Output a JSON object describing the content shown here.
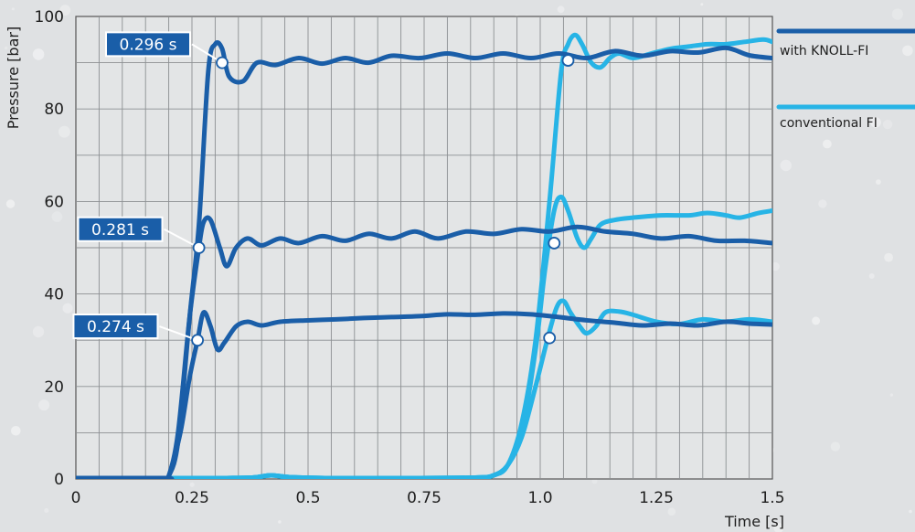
{
  "chart_data": {
    "type": "line",
    "xlabel": "Time [s]",
    "ylabel": "Pressure [bar]",
    "xlim": [
      0,
      1.5
    ],
    "ylim": [
      0,
      100
    ],
    "x_ticks": [
      {
        "value": 0,
        "label": "0"
      },
      {
        "value": 0.25,
        "label": "0.25"
      },
      {
        "value": 0.5,
        "label": "0.5"
      },
      {
        "value": 0.75,
        "label": "0.75"
      },
      {
        "value": 1.0,
        "label": "1.0"
      },
      {
        "value": 1.25,
        "label": "1.25"
      },
      {
        "value": 1.5,
        "label": "1.5"
      }
    ],
    "y_ticks": [
      {
        "value": 0,
        "label": "0"
      },
      {
        "value": 20,
        "label": "20"
      },
      {
        "value": 40,
        "label": "40"
      },
      {
        "value": 60,
        "label": "60"
      },
      {
        "value": 80,
        "label": "80"
      },
      {
        "value": 100,
        "label": "100"
      }
    ],
    "grid": true,
    "legend_position": "right",
    "legend": [
      {
        "label": "with KNOLL-FI",
        "color": "#1a5ea8"
      },
      {
        "label": "conventional FI",
        "color": "#27b4e6"
      }
    ],
    "series": [
      {
        "group": "with KNOLL-FI",
        "color": "#1a5ea8",
        "points": [
          [
            0,
            0.2
          ],
          [
            0.19,
            0.2
          ],
          [
            0.2,
            0.6
          ],
          [
            0.22,
            8
          ],
          [
            0.245,
            35
          ],
          [
            0.265,
            55
          ],
          [
            0.285,
            88
          ],
          [
            0.3,
            94
          ],
          [
            0.315,
            93
          ],
          [
            0.33,
            87
          ],
          [
            0.36,
            86
          ],
          [
            0.39,
            90
          ],
          [
            0.43,
            89.5
          ],
          [
            0.48,
            91
          ],
          [
            0.53,
            89.8
          ],
          [
            0.58,
            91
          ],
          [
            0.63,
            90
          ],
          [
            0.68,
            91.5
          ],
          [
            0.74,
            91
          ],
          [
            0.8,
            92
          ],
          [
            0.86,
            91
          ],
          [
            0.92,
            92
          ],
          [
            0.98,
            91
          ],
          [
            1.04,
            92
          ],
          [
            1.1,
            91
          ],
          [
            1.16,
            92.5
          ],
          [
            1.22,
            91.5
          ],
          [
            1.28,
            92.5
          ],
          [
            1.34,
            92.2
          ],
          [
            1.4,
            93.2
          ],
          [
            1.45,
            91.6
          ],
          [
            1.5,
            91
          ]
        ]
      },
      {
        "group": "with KNOLL-FI",
        "color": "#1a5ea8",
        "points": [
          [
            0,
            0.2
          ],
          [
            0.19,
            0.2
          ],
          [
            0.2,
            0.6
          ],
          [
            0.22,
            10
          ],
          [
            0.245,
            35
          ],
          [
            0.265,
            50
          ],
          [
            0.275,
            55.5
          ],
          [
            0.29,
            56
          ],
          [
            0.31,
            50
          ],
          [
            0.325,
            46
          ],
          [
            0.345,
            50
          ],
          [
            0.37,
            52
          ],
          [
            0.4,
            50.5
          ],
          [
            0.44,
            52
          ],
          [
            0.48,
            51
          ],
          [
            0.53,
            52.5
          ],
          [
            0.58,
            51.5
          ],
          [
            0.63,
            53
          ],
          [
            0.68,
            52
          ],
          [
            0.73,
            53.5
          ],
          [
            0.78,
            52
          ],
          [
            0.84,
            53.5
          ],
          [
            0.9,
            53
          ],
          [
            0.96,
            54
          ],
          [
            1.02,
            53.5
          ],
          [
            1.08,
            54.5
          ],
          [
            1.14,
            53.5
          ],
          [
            1.2,
            53
          ],
          [
            1.26,
            52
          ],
          [
            1.32,
            52.5
          ],
          [
            1.38,
            51.5
          ],
          [
            1.44,
            51.5
          ],
          [
            1.5,
            51
          ]
        ]
      },
      {
        "group": "with KNOLL-FI",
        "color": "#1a5ea8",
        "points": [
          [
            0,
            0.2
          ],
          [
            0.19,
            0.2
          ],
          [
            0.2,
            0.6
          ],
          [
            0.225,
            10
          ],
          [
            0.245,
            22
          ],
          [
            0.262,
            30
          ],
          [
            0.275,
            36
          ],
          [
            0.29,
            33
          ],
          [
            0.305,
            28
          ],
          [
            0.32,
            29.5
          ],
          [
            0.345,
            33
          ],
          [
            0.37,
            34
          ],
          [
            0.4,
            33.2
          ],
          [
            0.44,
            34
          ],
          [
            0.5,
            34.3
          ],
          [
            0.56,
            34.5
          ],
          [
            0.62,
            34.8
          ],
          [
            0.68,
            35
          ],
          [
            0.74,
            35.2
          ],
          [
            0.8,
            35.6
          ],
          [
            0.86,
            35.5
          ],
          [
            0.92,
            35.8
          ],
          [
            0.98,
            35.6
          ],
          [
            1.04,
            35
          ],
          [
            1.1,
            34.3
          ],
          [
            1.16,
            33.8
          ],
          [
            1.22,
            33.2
          ],
          [
            1.28,
            33.6
          ],
          [
            1.34,
            33.2
          ],
          [
            1.4,
            34
          ],
          [
            1.45,
            33.6
          ],
          [
            1.5,
            33.4
          ]
        ]
      },
      {
        "group": "conventional FI",
        "color": "#27b4e6",
        "points": [
          [
            0,
            0.2
          ],
          [
            0.3,
            0.2
          ],
          [
            0.38,
            0.3
          ],
          [
            0.42,
            0.8
          ],
          [
            0.46,
            0.4
          ],
          [
            0.55,
            0.2
          ],
          [
            0.7,
            0.2
          ],
          [
            0.86,
            0.3
          ],
          [
            0.9,
            0.8
          ],
          [
            0.93,
            3
          ],
          [
            0.96,
            12
          ],
          [
            0.99,
            30
          ],
          [
            1.02,
            60
          ],
          [
            1.045,
            88
          ],
          [
            1.06,
            94
          ],
          [
            1.075,
            96
          ],
          [
            1.09,
            94
          ],
          [
            1.11,
            90
          ],
          [
            1.13,
            89
          ],
          [
            1.15,
            91
          ],
          [
            1.17,
            92
          ],
          [
            1.2,
            91
          ],
          [
            1.24,
            92
          ],
          [
            1.28,
            93
          ],
          [
            1.32,
            93.5
          ],
          [
            1.36,
            94
          ],
          [
            1.4,
            94
          ],
          [
            1.44,
            94.5
          ],
          [
            1.48,
            95
          ],
          [
            1.5,
            94.5
          ]
        ]
      },
      {
        "group": "conventional FI",
        "color": "#27b4e6",
        "points": [
          [
            0,
            0.2
          ],
          [
            0.3,
            0.2
          ],
          [
            0.38,
            0.3
          ],
          [
            0.42,
            0.8
          ],
          [
            0.46,
            0.4
          ],
          [
            0.55,
            0.2
          ],
          [
            0.7,
            0.2
          ],
          [
            0.86,
            0.3
          ],
          [
            0.9,
            0.8
          ],
          [
            0.93,
            3
          ],
          [
            0.96,
            10
          ],
          [
            0.99,
            28
          ],
          [
            1.01,
            45
          ],
          [
            1.03,
            58
          ],
          [
            1.045,
            61
          ],
          [
            1.06,
            58
          ],
          [
            1.08,
            52
          ],
          [
            1.095,
            50
          ],
          [
            1.11,
            52
          ],
          [
            1.13,
            55
          ],
          [
            1.16,
            56
          ],
          [
            1.2,
            56.5
          ],
          [
            1.26,
            57
          ],
          [
            1.32,
            57
          ],
          [
            1.36,
            57.5
          ],
          [
            1.4,
            57
          ],
          [
            1.43,
            56.5
          ],
          [
            1.47,
            57.5
          ],
          [
            1.5,
            58
          ]
        ]
      },
      {
        "group": "conventional FI",
        "color": "#27b4e6",
        "points": [
          [
            0,
            0.2
          ],
          [
            0.3,
            0.2
          ],
          [
            0.38,
            0.3
          ],
          [
            0.42,
            0.8
          ],
          [
            0.46,
            0.4
          ],
          [
            0.55,
            0.2
          ],
          [
            0.7,
            0.2
          ],
          [
            0.86,
            0.3
          ],
          [
            0.9,
            0.8
          ],
          [
            0.93,
            3
          ],
          [
            0.96,
            9
          ],
          [
            0.99,
            20
          ],
          [
            1.015,
            30
          ],
          [
            1.035,
            37
          ],
          [
            1.05,
            38.5
          ],
          [
            1.065,
            36
          ],
          [
            1.085,
            33
          ],
          [
            1.1,
            31.5
          ],
          [
            1.12,
            33
          ],
          [
            1.14,
            36
          ],
          [
            1.17,
            36.2
          ],
          [
            1.2,
            35.5
          ],
          [
            1.25,
            34
          ],
          [
            1.3,
            33.5
          ],
          [
            1.35,
            34.5
          ],
          [
            1.4,
            34
          ],
          [
            1.45,
            34.5
          ],
          [
            1.5,
            34
          ]
        ]
      }
    ],
    "markers": [
      [
        0.315,
        90
      ],
      [
        0.265,
        50
      ],
      [
        0.262,
        30
      ],
      [
        1.06,
        90.5
      ],
      [
        1.03,
        51
      ],
      [
        1.02,
        30.5
      ]
    ],
    "callouts": [
      {
        "label": "0.296 s",
        "point": [
          0.315,
          90
        ],
        "anchor": [
          0.25,
          94
        ]
      },
      {
        "label": "0.281 s",
        "point": [
          0.265,
          50
        ],
        "anchor": [
          0.19,
          54
        ]
      },
      {
        "label": "0.274 s",
        "point": [
          0.262,
          30
        ],
        "anchor": [
          0.18,
          33
        ]
      }
    ]
  }
}
